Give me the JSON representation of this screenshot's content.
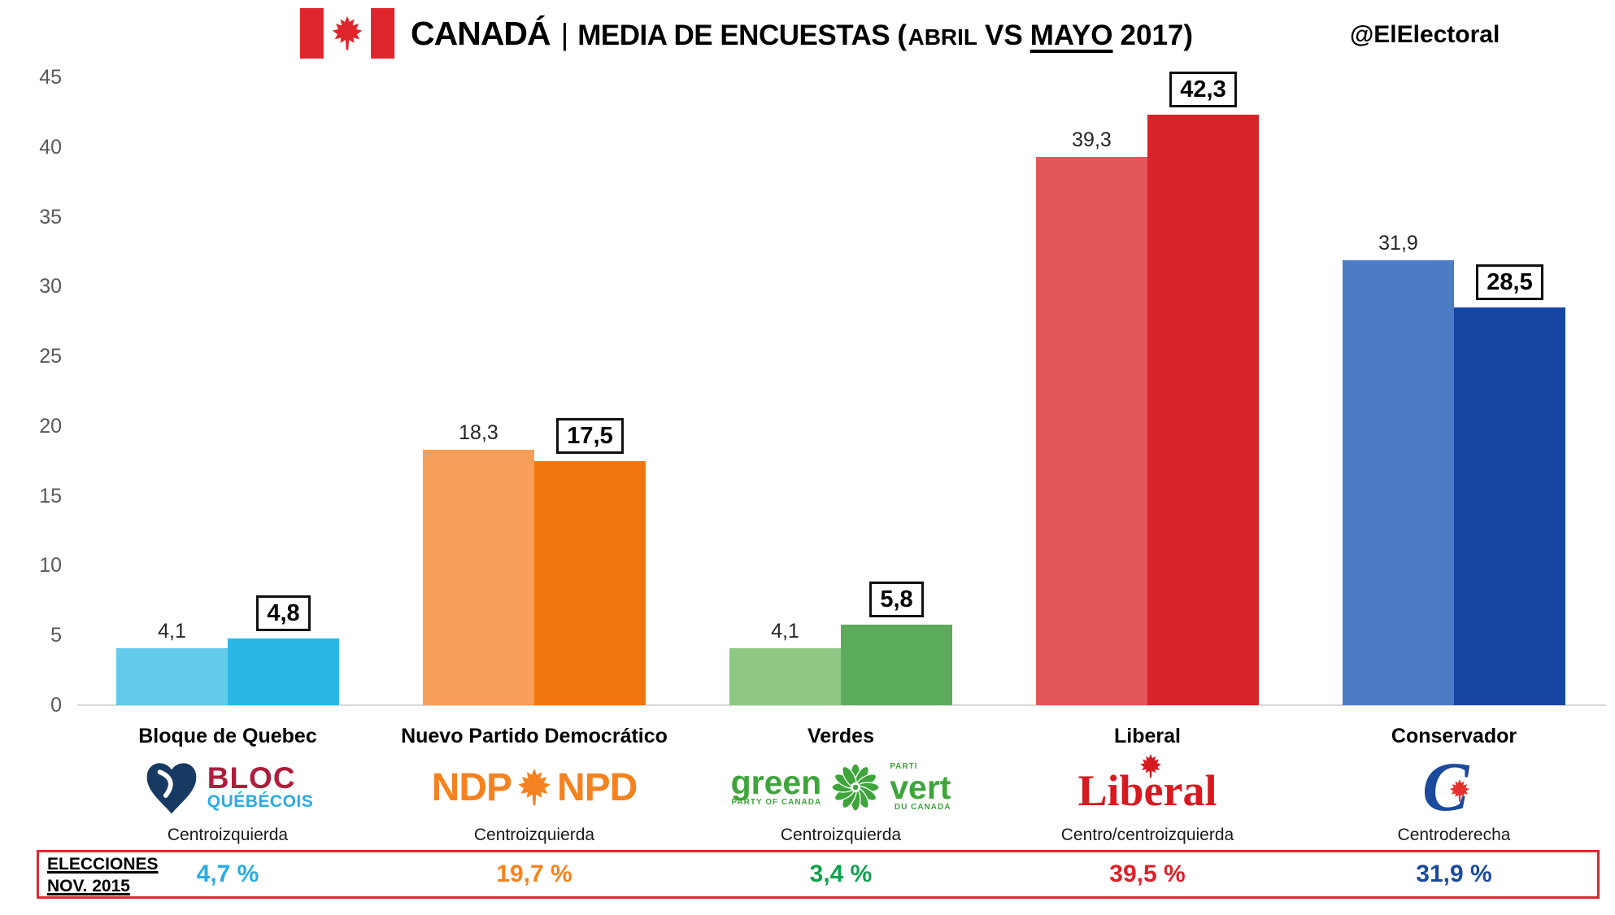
{
  "header": {
    "title_country": "CANADÁ",
    "title_separator": "|",
    "title_main": "MEDIA DE ENCUESTAS (",
    "title_month_from": "ABRIL",
    "title_vs": "VS",
    "title_month_to": "MAYO",
    "title_year": "2017)",
    "handle": "@ElElectoral"
  },
  "axis": {
    "yticks": [
      "45",
      "40",
      "35",
      "30",
      "25",
      "20",
      "15",
      "10",
      "5",
      "0"
    ]
  },
  "chart_data": {
    "type": "bar",
    "title": "CANADÁ | MEDIA DE ENCUESTAS (ABRIL VS MAYO 2017)",
    "categories": [
      "Bloque de Quebec",
      "Nuevo Partido Democrático",
      "Verdes",
      "Liberal",
      "Conservador"
    ],
    "series": [
      {
        "name": "Abril 2017",
        "values": [
          4.1,
          18.3,
          4.1,
          39.3,
          31.9
        ]
      },
      {
        "name": "Mayo 2017",
        "values": [
          4.8,
          17.5,
          5.8,
          42.3,
          28.5
        ]
      }
    ],
    "election_nov_2015": [
      4.7,
      19.7,
      3.4,
      39.5,
      31.9
    ],
    "ylim": [
      0,
      45
    ],
    "yticks": [
      0,
      5,
      10,
      15,
      20,
      25,
      30,
      35,
      40,
      45
    ],
    "grid": false,
    "legend_position": "none",
    "annotations": "Mayo values shown in black-boxed bold labels; Abril values plain above bars"
  },
  "parties": [
    {
      "name": "Bloque de Quebec",
      "orientation": "Centroizquierda",
      "april": 4.1,
      "mayo": 4.8,
      "april_label": "4,1",
      "mayo_label": "4,8",
      "april_color": "#63CAEC",
      "mayo_color": "#2BB7E6",
      "election_2015": "4,7 %",
      "election_color": "#29ABE2",
      "logo": "bloc"
    },
    {
      "name": "Nuevo Partido Democrático",
      "orientation": "Centroizquierda",
      "april": 18.3,
      "mayo": 17.5,
      "april_label": "18,3",
      "mayo_label": "17,5",
      "april_color": "#F89E5B",
      "mayo_color": "#F0770F",
      "election_2015": "19,7 %",
      "election_color": "#F58220",
      "logo": "ndp"
    },
    {
      "name": "Verdes",
      "orientation": "Centroizquierda",
      "april": 4.1,
      "mayo": 5.8,
      "april_label": "4,1",
      "mayo_label": "5,8",
      "april_color": "#8FC785",
      "mayo_color": "#5CAB5C",
      "election_2015": "3,4 %",
      "election_color": "#12A14D",
      "logo": "green"
    },
    {
      "name": "Liberal",
      "orientation": "Centro/centroizquierda",
      "april": 39.3,
      "mayo": 42.3,
      "april_label": "39,3",
      "mayo_label": "42,3",
      "april_color": "#E25858",
      "mayo_color": "#D8232A",
      "election_2015": "39,5 %",
      "election_color": "#E31E26",
      "logo": "liberal"
    },
    {
      "name": "Conservador",
      "orientation": "Centroderecha",
      "april": 31.9,
      "mayo": 28.5,
      "april_label": "31,9",
      "mayo_label": "28,5",
      "april_color": "#4B7CC4",
      "mayo_color": "#1647A0",
      "election_2015": "31,9 %",
      "election_color": "#1B4A9E",
      "logo": "cons"
    }
  ],
  "logos": {
    "bloc": {
      "line1": "BLOC",
      "line2": "QUÉBÉCOIS"
    },
    "ndp": {
      "left": "NDP",
      "right": "NPD"
    },
    "green": {
      "word_left": "green",
      "sub_left": "PARTY OF CANADA",
      "sup_right": "PARTI",
      "word_right": "vert",
      "sub_right": "DU CANADA"
    },
    "liberal": {
      "word": "Liberal"
    },
    "cons": {
      "letter": "C"
    }
  },
  "footer": {
    "label_line1": "ELECCIONES",
    "label_line2": "NOV. 2015"
  }
}
